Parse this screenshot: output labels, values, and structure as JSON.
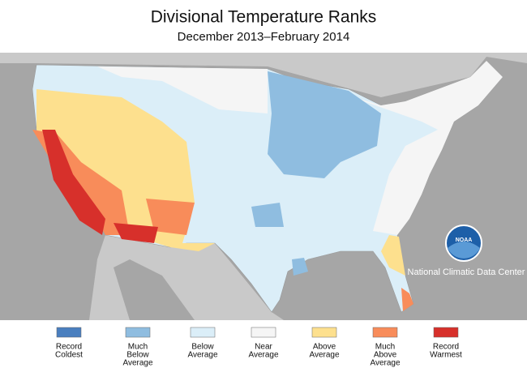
{
  "header": {
    "title": "Divisional Temperature Ranks",
    "subtitle": "December 2013–February 2014"
  },
  "logo": {
    "label": "NOAA",
    "caption": "National Climatic Data Center"
  },
  "legend": [
    {
      "lines": [
        "Record",
        "Coldest"
      ],
      "color": "#4a7fbf"
    },
    {
      "lines": [
        "Much",
        "Below",
        "Average"
      ],
      "color": "#8fbde0"
    },
    {
      "lines": [
        "Below",
        "Average"
      ],
      "color": "#dbeef8"
    },
    {
      "lines": [
        "Near",
        "Average"
      ],
      "color": "#f5f5f5"
    },
    {
      "lines": [
        "Above",
        "Average"
      ],
      "color": "#fde08e"
    },
    {
      "lines": [
        "Much",
        "Above",
        "Average"
      ],
      "color": "#f88c5a"
    },
    {
      "lines": [
        "Record",
        "Warmest"
      ],
      "color": "#d7302b"
    }
  ]
}
